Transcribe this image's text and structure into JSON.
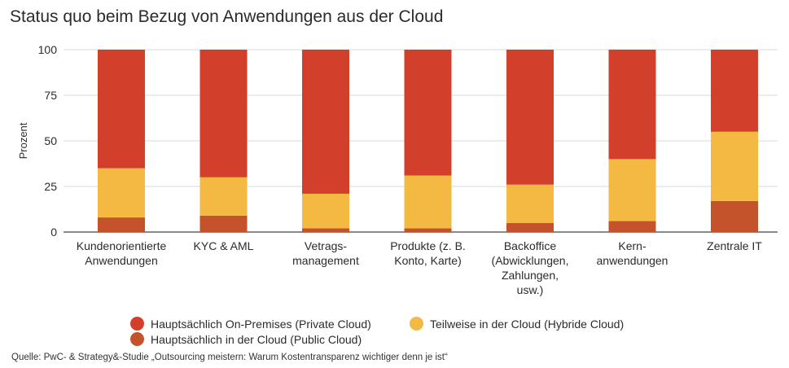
{
  "title": "Status quo beim Bezug von Anwendungen aus der Cloud",
  "source": "Quelle: PwC- & Strategy&-Studie „Outsourcing meistern: Warum Kostentransparenz wichtiger denn je ist“",
  "colors": {
    "private": "#d2402c",
    "hybrid": "#f3b942",
    "public": "#c4522a",
    "grid": "#d9d9d9",
    "axis": "#444444"
  },
  "chart_data": {
    "type": "bar",
    "stacked": true,
    "title": "Status quo beim Bezug von Anwendungen aus der Cloud",
    "ylabel": "Prozent",
    "xlabel": "",
    "ylim": [
      0,
      100
    ],
    "yticks": [
      0,
      25,
      50,
      75,
      100
    ],
    "grid": true,
    "legend_position": "bottom",
    "categories": [
      [
        "Kundenorientierte",
        "Anwendungen"
      ],
      [
        "KYC & AML"
      ],
      [
        "Vetrags-",
        "management"
      ],
      [
        "Produkte (z. B.",
        "Konto, Karte)"
      ],
      [
        "Backoffice",
        "(Abwicklungen,",
        "Zahlungen,",
        "usw.)"
      ],
      [
        "Kern-",
        "anwendungen"
      ],
      [
        "Zentrale IT"
      ]
    ],
    "series": [
      {
        "name": "Hauptsächlich in der Cloud (Public Cloud)",
        "key": "public",
        "values": [
          8,
          9,
          2,
          2,
          5,
          6,
          17
        ]
      },
      {
        "name": "Teilweise in der Cloud (Hybride Cloud)",
        "key": "hybrid",
        "values": [
          27,
          21,
          19,
          29,
          21,
          34,
          38
        ]
      },
      {
        "name": "Hauptsächlich On-Premises (Private Cloud)",
        "key": "private",
        "values": [
          65,
          70,
          79,
          69,
          74,
          60,
          45
        ]
      }
    ]
  },
  "legend": [
    {
      "label": "Hauptsächlich On-Premises (Private Cloud)",
      "key": "private"
    },
    {
      "label": "Teilweise in der Cloud (Hybride Cloud)",
      "key": "hybrid"
    },
    {
      "label": "Hauptsächlich in der Cloud (Public Cloud)",
      "key": "public"
    }
  ]
}
